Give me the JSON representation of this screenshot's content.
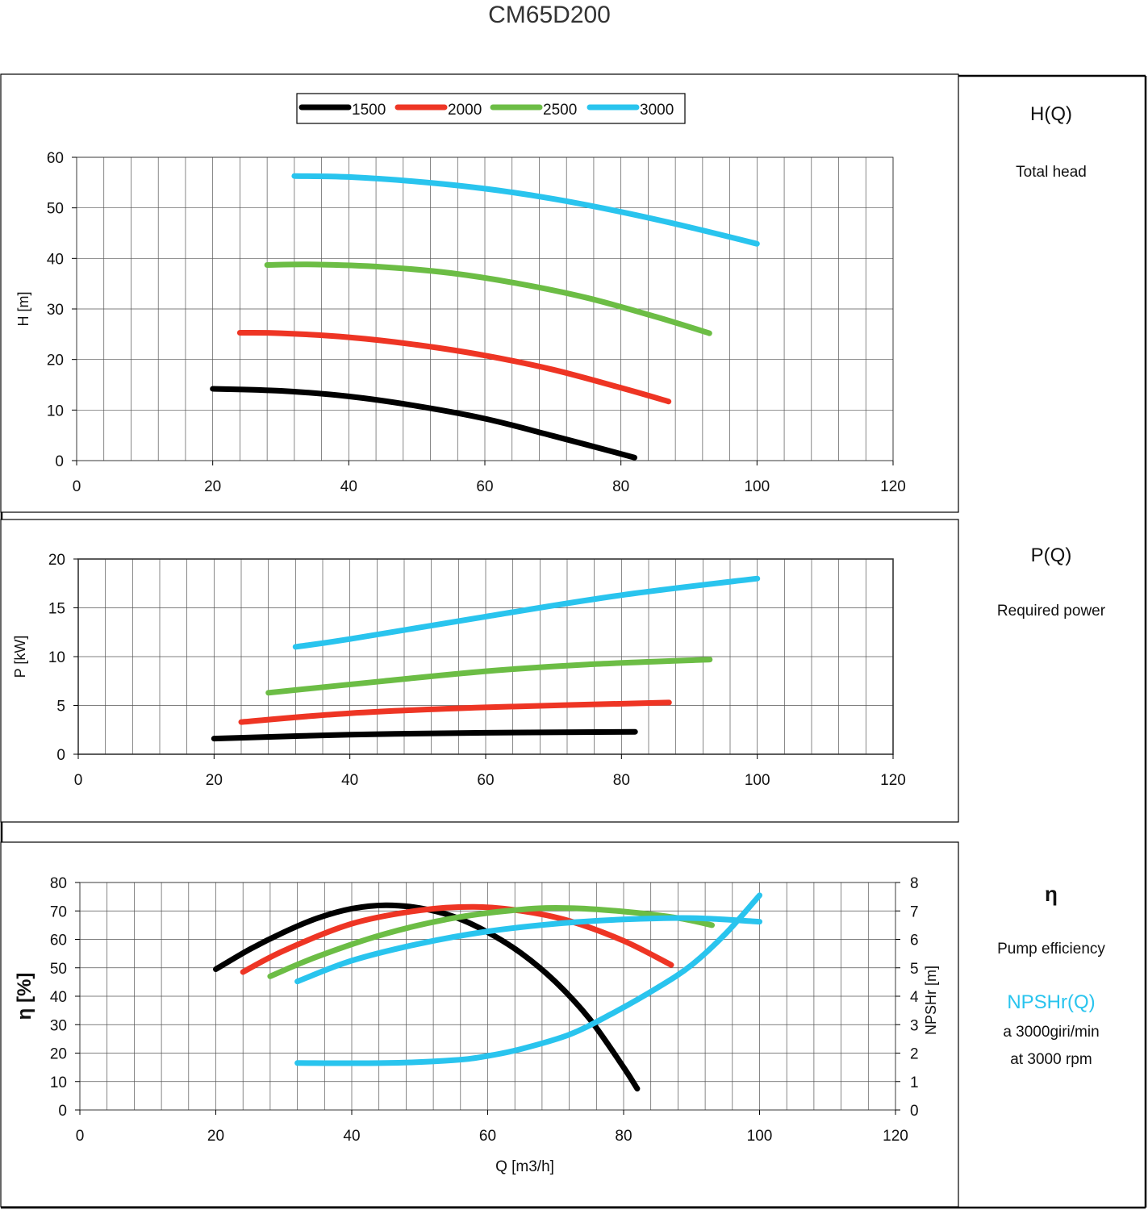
{
  "title": "CM65D200",
  "side": {
    "head_title": "H(Q)",
    "head_sub": "Total head",
    "power_title": "P(Q)",
    "power_sub": "Required power",
    "eff_title": "η",
    "eff_sub": "Pump efficiency",
    "npsh_title": "NPSHr(Q)",
    "npsh_line1": "a 3000giri/min",
    "npsh_line2": "at 3000 rpm"
  },
  "colors": {
    "1500": "#000000",
    "2000": "#ee3524",
    "2500": "#6cbd45",
    "3000": "#29c4ee"
  },
  "chart_data": [
    {
      "type": "line",
      "id": "head",
      "xlabel": "",
      "ylabel": "H [m]",
      "xlim": [
        0,
        120
      ],
      "ylim": [
        0,
        60
      ],
      "xticks": [
        0,
        20,
        40,
        60,
        80,
        100,
        120
      ],
      "yticks": [
        0,
        10,
        20,
        30,
        40,
        50,
        60
      ],
      "grid": true,
      "legend": "top-center",
      "series": [
        {
          "name": "1500",
          "color": "#000000",
          "x": [
            20,
            30,
            40,
            50,
            60,
            70,
            82
          ],
          "y": [
            14.2,
            13.8,
            12.7,
            10.8,
            8.3,
            4.9,
            0.6
          ]
        },
        {
          "name": "2000",
          "color": "#ee3524",
          "x": [
            24,
            30,
            40,
            50,
            60,
            70,
            80,
            87
          ],
          "y": [
            25.3,
            25.2,
            24.4,
            22.9,
            20.8,
            18.0,
            14.4,
            11.7
          ]
        },
        {
          "name": "2500",
          "color": "#6cbd45",
          "x": [
            28,
            35,
            45,
            55,
            65,
            75,
            85,
            93
          ],
          "y": [
            38.7,
            38.8,
            38.3,
            37.1,
            35.0,
            32.2,
            28.5,
            25.2
          ]
        },
        {
          "name": "3000",
          "color": "#29c4ee",
          "x": [
            32,
            40,
            50,
            60,
            70,
            80,
            90,
            100
          ],
          "y": [
            56.3,
            56.1,
            55.2,
            53.8,
            51.8,
            49.2,
            46.2,
            42.9
          ]
        }
      ]
    },
    {
      "type": "line",
      "id": "power",
      "xlabel": "",
      "ylabel": "P [kW]",
      "xlim": [
        0,
        120
      ],
      "ylim": [
        0,
        20
      ],
      "xticks": [
        0,
        20,
        40,
        60,
        80,
        100,
        120
      ],
      "yticks": [
        0,
        5,
        10,
        15,
        20
      ],
      "grid": true,
      "series": [
        {
          "name": "1500",
          "color": "#000000",
          "x": [
            20,
            40,
            60,
            82
          ],
          "y": [
            1.6,
            2.0,
            2.2,
            2.3
          ]
        },
        {
          "name": "2000",
          "color": "#ee3524",
          "x": [
            24,
            40,
            60,
            87
          ],
          "y": [
            3.3,
            4.2,
            4.8,
            5.3
          ]
        },
        {
          "name": "2500",
          "color": "#6cbd45",
          "x": [
            28,
            45,
            60,
            75,
            93
          ],
          "y": [
            6.3,
            7.5,
            8.5,
            9.2,
            9.7
          ]
        },
        {
          "name": "3000",
          "color": "#29c4ee",
          "x": [
            32,
            40,
            60,
            80,
            100
          ],
          "y": [
            11.0,
            11.8,
            14.1,
            16.3,
            18.0
          ]
        }
      ]
    },
    {
      "type": "line",
      "id": "efficiency",
      "xlabel": "Q [m3/h]",
      "ylabel": "η [%]",
      "y2label": "NPSHr [m]",
      "xlim": [
        0,
        120
      ],
      "ylim": [
        0,
        80
      ],
      "y2lim": [
        0,
        8
      ],
      "xticks": [
        0,
        20,
        40,
        60,
        80,
        100,
        120
      ],
      "yticks": [
        0,
        10,
        20,
        30,
        40,
        50,
        60,
        70,
        80
      ],
      "y2ticks": [
        0,
        1,
        2,
        3,
        4,
        5,
        6,
        7,
        8
      ],
      "grid": true,
      "series": [
        {
          "name": "1500",
          "color": "#000000",
          "x": [
            20,
            25,
            30,
            35,
            40,
            45,
            50,
            55,
            60,
            65,
            70,
            75,
            80,
            82
          ],
          "y": [
            49.5,
            56.5,
            62.5,
            67.5,
            70.8,
            72.0,
            71.0,
            68.0,
            62.5,
            55.0,
            45.0,
            32.0,
            15.0,
            7.5
          ]
        },
        {
          "name": "2000",
          "color": "#ee3524",
          "x": [
            24,
            30,
            40,
            50,
            58,
            65,
            72,
            80,
            87
          ],
          "y": [
            48.5,
            56.0,
            65.5,
            70.2,
            71.4,
            70.0,
            66.5,
            59.5,
            51.0
          ]
        },
        {
          "name": "2500",
          "color": "#6cbd45",
          "x": [
            28,
            35,
            45,
            55,
            65,
            72,
            80,
            88,
            93
          ],
          "y": [
            47.0,
            54.0,
            62.0,
            67.5,
            70.5,
            71.0,
            69.8,
            67.5,
            65.0
          ]
        },
        {
          "name": "3000",
          "color": "#29c4ee",
          "x": [
            32,
            40,
            50,
            60,
            70,
            80,
            90,
            100
          ],
          "y": [
            45.2,
            52.5,
            58.5,
            62.8,
            65.5,
            67.0,
            67.5,
            66.2
          ]
        },
        {
          "name": "NPSHr",
          "color": "#29c4ee",
          "axis": "right",
          "x": [
            32,
            45,
            55,
            60,
            65,
            72,
            78,
            85,
            90,
            95,
            100
          ],
          "y": [
            1.65,
            1.65,
            1.75,
            1.9,
            2.15,
            2.65,
            3.35,
            4.3,
            5.1,
            6.2,
            7.55
          ]
        }
      ]
    }
  ]
}
